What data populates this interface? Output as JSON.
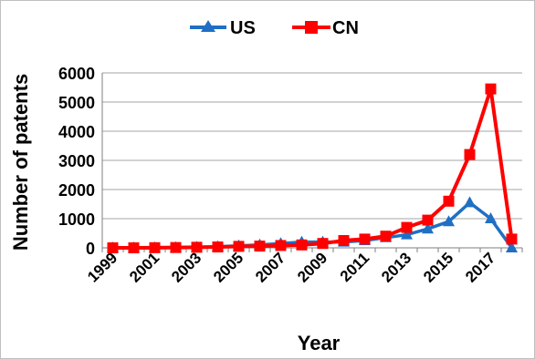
{
  "chart_data": {
    "type": "line",
    "title": "",
    "xlabel": "Year",
    "ylabel": "Number of patents",
    "x": [
      1999,
      2000,
      2001,
      2002,
      2003,
      2004,
      2005,
      2006,
      2007,
      2008,
      2009,
      2010,
      2011,
      2012,
      2013,
      2014,
      2015,
      2016,
      2017,
      2018
    ],
    "x_tick_labels": [
      "1999",
      "2001",
      "2003",
      "2005",
      "2007",
      "2009",
      "2011",
      "2013",
      "2015",
      "2017"
    ],
    "ylim": [
      0,
      6000
    ],
    "y_ticks": [
      0,
      1000,
      2000,
      3000,
      4000,
      5000,
      6000
    ],
    "grid": "horizontal",
    "legend_position": "top",
    "series": [
      {
        "name": "US",
        "color": "#1f6fc5",
        "marker": "triangle",
        "values": [
          0,
          0,
          5,
          10,
          20,
          40,
          70,
          100,
          150,
          200,
          200,
          200,
          250,
          350,
          450,
          650,
          900,
          1550,
          1000,
          0
        ]
      },
      {
        "name": "CN",
        "color": "#ff0000",
        "marker": "square",
        "values": [
          0,
          0,
          5,
          10,
          20,
          30,
          50,
          60,
          80,
          100,
          150,
          250,
          300,
          400,
          700,
          950,
          1600,
          3200,
          5450,
          300
        ]
      }
    ]
  }
}
